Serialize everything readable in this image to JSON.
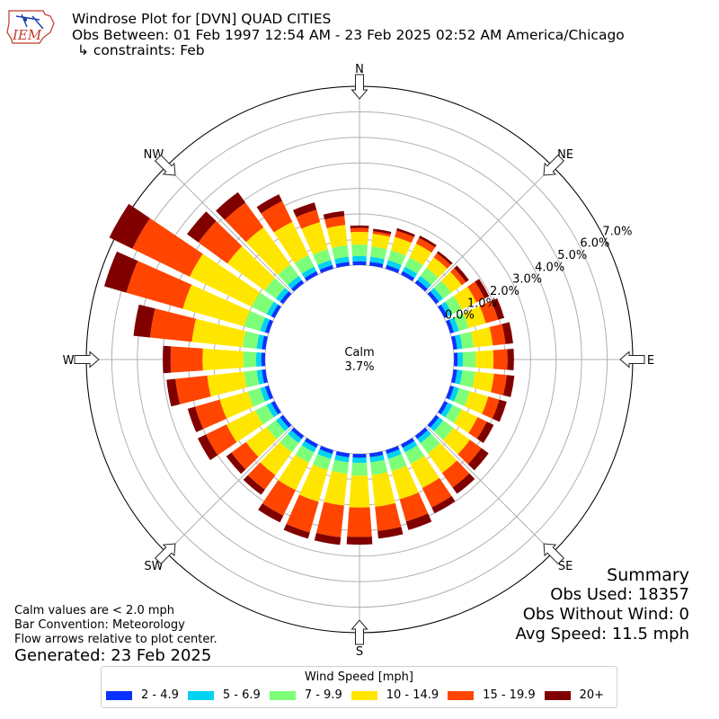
{
  "header": {
    "line1": "Windrose Plot for [DVN] QUAD CITIES",
    "line2": "Obs Between: 01 Feb 1997 12:54 AM - 23 Feb 2025 02:52 AM America/Chicago",
    "line3": "↳ constraints: Feb",
    "logo_text": "IEM"
  },
  "notes": {
    "calm_def": "Calm values are < 2.0 mph",
    "bar_convention": "Bar Convention: Meteorology",
    "flow_arrows": "Flow arrows relative to plot center.",
    "generated": "Generated: 23 Feb 2025"
  },
  "summary": {
    "title": "Summary",
    "obs_used": "Obs Used: 18357",
    "obs_without_wind": "Obs Without Wind: 0",
    "avg_speed": "Avg Speed: 11.5 mph"
  },
  "colors": {
    "bins": [
      "#0a32ff",
      "#00d2f0",
      "#7dff7a",
      "#ffe600",
      "#ff4500",
      "#800000"
    ],
    "grid": "#b0b0b0"
  },
  "chart_data": {
    "type": "polar-stacked-bar",
    "title": "Windrose Plot for [DVN] QUAD CITIES",
    "calm_label": "Calm",
    "calm_value": "3.7%",
    "radial_unit": "%",
    "radial_offset": 3.7,
    "radial_ticks": [
      "0.0%",
      "1.0%",
      "2.0%",
      "3.0%",
      "4.0%",
      "5.0%",
      "6.0%",
      "7.0%"
    ],
    "radial_tick_values": [
      0,
      1,
      2,
      3,
      4,
      5,
      6,
      7
    ],
    "direction_labels": [
      "N",
      "NE",
      "E",
      "SE",
      "S",
      "SW",
      "W",
      "NW"
    ],
    "direction_angles_deg": [
      0,
      45,
      90,
      135,
      180,
      225,
      270,
      315
    ],
    "legend_title": "Wind Speed [mph]",
    "legend_position": "bottom",
    "speed_bins": [
      "2 - 4.9",
      "5 - 6.9",
      "7 - 9.9",
      "10 - 14.9",
      "15 - 19.9",
      "20+"
    ],
    "directions_deg": [
      0,
      10,
      20,
      30,
      40,
      50,
      60,
      70,
      80,
      90,
      100,
      110,
      120,
      130,
      140,
      150,
      160,
      170,
      180,
      190,
      200,
      210,
      220,
      230,
      240,
      250,
      260,
      270,
      280,
      290,
      300,
      310,
      320,
      330,
      340,
      350
    ],
    "stacked_totals": [
      [
        0.15,
        0.35,
        0.8,
        1.3,
        1.45,
        1.55
      ],
      [
        0.15,
        0.35,
        0.75,
        1.25,
        1.35,
        1.45
      ],
      [
        0.15,
        0.35,
        0.75,
        1.3,
        1.55,
        1.65
      ],
      [
        0.15,
        0.35,
        0.75,
        1.35,
        1.6,
        1.7
      ],
      [
        0.15,
        0.35,
        0.75,
        1.25,
        1.45,
        1.55
      ],
      [
        0.15,
        0.35,
        0.75,
        1.25,
        1.45,
        1.6
      ],
      [
        0.15,
        0.35,
        0.75,
        1.4,
        1.75,
        1.95
      ],
      [
        0.15,
        0.35,
        0.75,
        1.45,
        1.95,
        2.2
      ],
      [
        0.15,
        0.35,
        0.8,
        1.55,
        2.05,
        2.35
      ],
      [
        0.15,
        0.35,
        0.85,
        1.55,
        2.1,
        2.35
      ],
      [
        0.15,
        0.35,
        0.85,
        1.6,
        2.1,
        2.4
      ],
      [
        0.15,
        0.35,
        0.8,
        1.55,
        2.0,
        2.3
      ],
      [
        0.15,
        0.35,
        0.75,
        1.45,
        1.85,
        2.15
      ],
      [
        0.15,
        0.35,
        0.85,
        1.65,
        2.2,
        2.55
      ],
      [
        0.15,
        0.35,
        0.85,
        1.8,
        2.5,
        2.8
      ],
      [
        0.15,
        0.35,
        0.85,
        1.9,
        2.75,
        3.0
      ],
      [
        0.15,
        0.35,
        0.85,
        2.0,
        2.9,
        3.25
      ],
      [
        0.15,
        0.35,
        0.85,
        2.1,
        3.05,
        3.35
      ],
      [
        0.15,
        0.35,
        0.85,
        2.1,
        3.25,
        3.55
      ],
      [
        0.15,
        0.35,
        0.8,
        2.05,
        3.3,
        3.6
      ],
      [
        0.15,
        0.35,
        0.8,
        2.1,
        3.35,
        3.6
      ],
      [
        0.15,
        0.35,
        0.8,
        2.0,
        3.1,
        3.4
      ],
      [
        0.15,
        0.35,
        0.8,
        1.9,
        2.6,
        2.85
      ],
      [
        0.15,
        0.35,
        0.8,
        1.8,
        2.5,
        2.75
      ],
      [
        0.15,
        0.35,
        0.85,
        2.1,
        3.0,
        3.35
      ],
      [
        0.15,
        0.35,
        0.85,
        2.0,
        3.0,
        3.3
      ],
      [
        0.15,
        0.35,
        0.85,
        2.3,
        3.55,
        3.9
      ],
      [
        0.15,
        0.35,
        0.85,
        2.45,
        3.7,
        4.0
      ],
      [
        0.15,
        0.35,
        0.9,
        2.9,
        4.55,
        5.2
      ],
      [
        0.15,
        0.35,
        1.0,
        3.5,
        5.8,
        6.7
      ],
      [
        0.15,
        0.35,
        1.0,
        3.7,
        6.2,
        7.2
      ],
      [
        0.15,
        0.35,
        0.9,
        2.7,
        4.1,
        4.65
      ],
      [
        0.15,
        0.35,
        0.9,
        2.7,
        3.9,
        4.4
      ],
      [
        0.15,
        0.35,
        0.85,
        2.3,
        3.2,
        3.5
      ],
      [
        0.15,
        0.35,
        0.8,
        1.9,
        2.4,
        2.7
      ],
      [
        0.15,
        0.35,
        0.8,
        1.6,
        1.95,
        2.15
      ]
    ]
  }
}
